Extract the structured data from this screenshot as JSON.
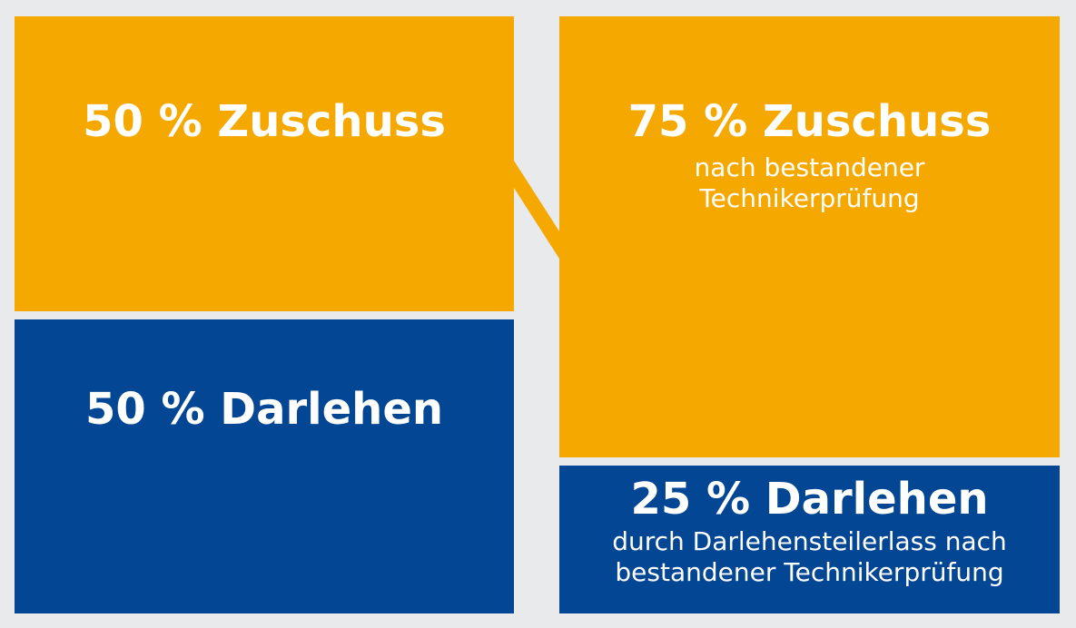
{
  "colors": {
    "background": "#e9eaec",
    "zuschuss": "#f5a800",
    "darlehen": "#034694",
    "text": "#ffffff"
  },
  "left": {
    "zuschuss": {
      "value": 50,
      "title": "50 % Zuschuss"
    },
    "darlehen": {
      "value": 50,
      "title": "50 % Darlehen"
    }
  },
  "right": {
    "zuschuss": {
      "value": 75,
      "title": "75 % Zuschuss",
      "note_line1": "nach bestandener",
      "note_line2": "Technikerprüfung"
    },
    "darlehen": {
      "value": 25,
      "title": "25 % Darlehen",
      "note_line1": "durch Darlehensteilerlass nach",
      "note_line2": "bestandener Technikerprüfung"
    }
  }
}
